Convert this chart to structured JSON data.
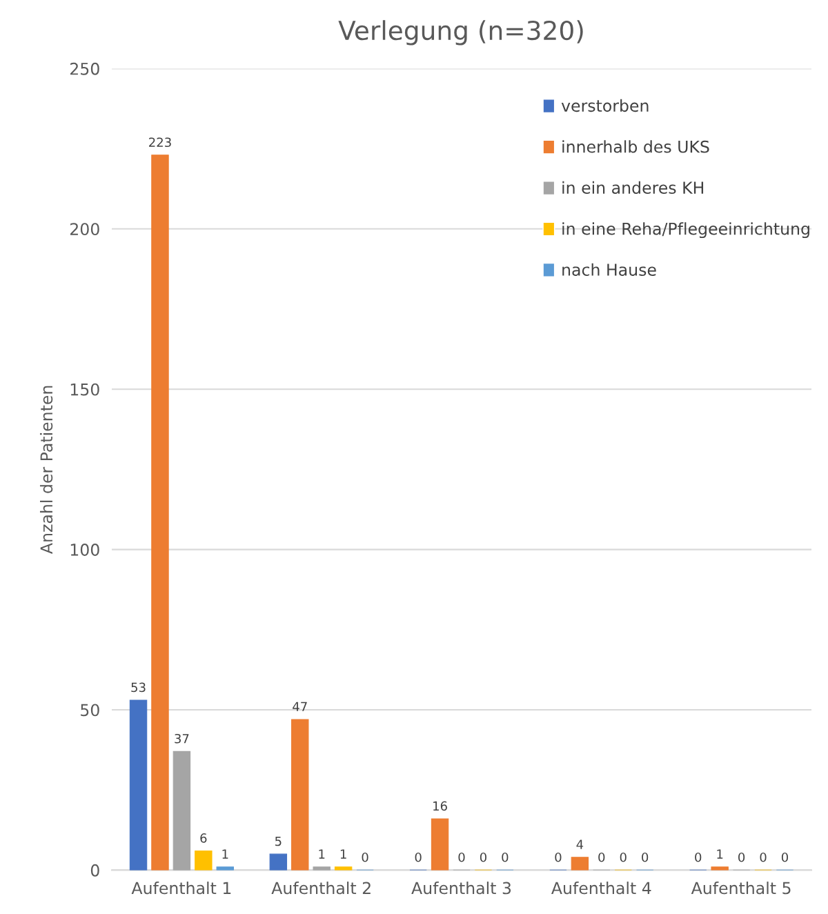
{
  "chart_data": {
    "type": "bar",
    "title": "Verlegung (n=320)",
    "ylabel": "Anzahl der Patienten",
    "categories": [
      "Aufenthalt 1",
      "Aufenthalt 2",
      "Aufenthalt 3",
      "Aufenthalt 4",
      "Aufenthalt 5"
    ],
    "series": [
      {
        "name": "verstorben",
        "color": "#4472c4",
        "values": [
          53,
          5,
          0,
          0,
          0
        ]
      },
      {
        "name": "innerhalb des UKS",
        "color": "#ed7d31",
        "values": [
          223,
          47,
          16,
          4,
          1
        ]
      },
      {
        "name": "in ein anderes KH",
        "color": "#a5a5a5",
        "values": [
          37,
          1,
          0,
          0,
          0
        ]
      },
      {
        "name": "in eine Reha/Pflegeeinrichtung",
        "color": "#ffc000",
        "values": [
          6,
          1,
          0,
          0,
          0
        ]
      },
      {
        "name": "nach Hause",
        "color": "#5b9bd5",
        "values": [
          1,
          0,
          0,
          0,
          0
        ]
      }
    ],
    "ylim": [
      0,
      250
    ],
    "yticks": [
      0,
      50,
      100,
      150,
      200,
      250
    ],
    "grid": "y",
    "legend": "top right",
    "data_labels": true
  }
}
